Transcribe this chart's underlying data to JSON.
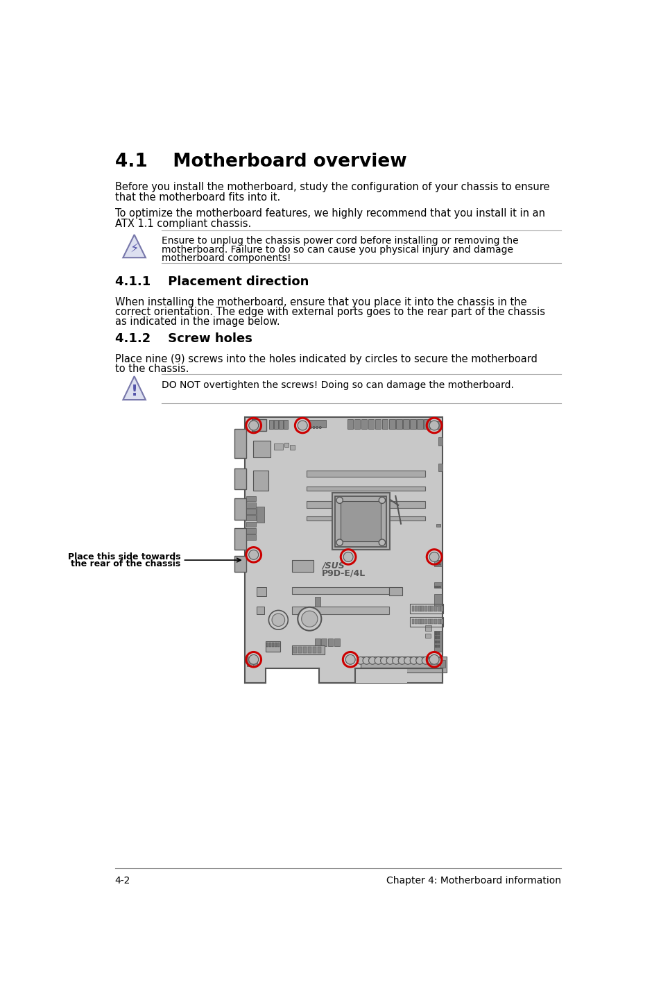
{
  "title": "4.1    Motherboard overview",
  "section411": "4.1.1    Placement direction",
  "section412": "4.1.2    Screw holes",
  "para1_l1": "Before you install the motherboard, study the configuration of your chassis to ensure",
  "para1_l2": "that the motherboard fits into it.",
  "para2_l1": "To optimize the motherboard features, we highly recommend that you install it in an",
  "para2_l2": "ATX 1.1 compliant chassis.",
  "warning1_l1": "Ensure to unplug the chassis power cord before installing or removing the",
  "warning1_l2": "motherboard. Failure to do so can cause you physical injury and damage",
  "warning1_l3": "motherboard components!",
  "para3_l1": "When installing the motherboard, ensure that you place it into the chassis in the",
  "para3_l2": "correct orientation. The edge with external ports goes to the rear part of the chassis",
  "para3_l3": "as indicated in the image below.",
  "para4_l1": "Place nine (9) screws into the holes indicated by circles to secure the motherboard",
  "para4_l2": "to the chassis.",
  "warning2": "DO NOT overtighten the screws! Doing so can damage the motherboard.",
  "label_arrow": "Place this side towards\nthe rear of the chassis",
  "asus_text": "/SUS",
  "asus_model": "P9D-E/4L",
  "footer_left": "4-2",
  "footer_right": "Chapter 4: Motherboard information",
  "bg_color": "#ffffff",
  "text_color": "#000000",
  "board_color": "#c8c8c8",
  "board_dark": "#a8a8a8",
  "board_border": "#555555",
  "slot_color": "#b0b0b0",
  "slot_border": "#606060",
  "screw_color": "#cc0000",
  "line_color": "#aaaaaa",
  "icon_fill": "#dde0f0",
  "icon_edge": "#7777aa"
}
